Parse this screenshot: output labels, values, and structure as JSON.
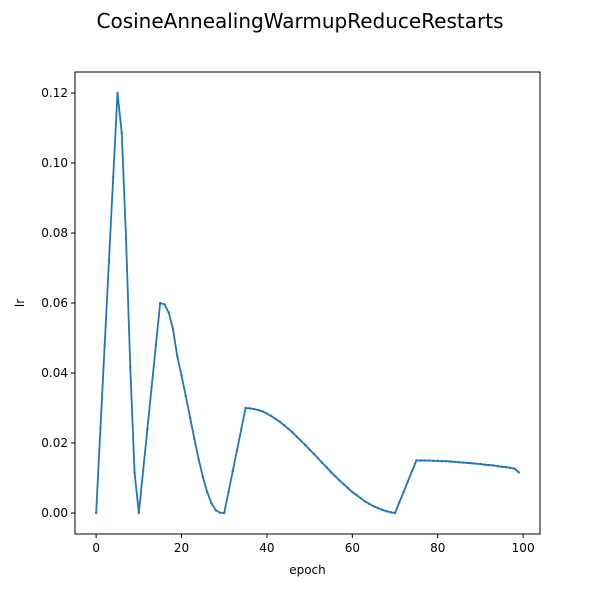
{
  "chart_data": {
    "type": "line",
    "title": "CosineAnnealingWarmupReduceRestarts",
    "xlabel": "epoch",
    "ylabel": "lr",
    "xlim": [
      -4.95,
      103.95
    ],
    "ylim": [
      -0.006,
      0.126
    ],
    "xticks": [
      0,
      20,
      40,
      60,
      80,
      100
    ],
    "yticks": [
      0.0,
      0.02,
      0.04,
      0.06,
      0.08,
      0.1,
      0.12
    ],
    "xtick_labels": [
      "0",
      "20",
      "40",
      "60",
      "80",
      "100"
    ],
    "ytick_labels": [
      "0.00",
      "0.02",
      "0.04",
      "0.06",
      "0.08",
      "0.10",
      "0.12"
    ],
    "grid": false,
    "color": "#1f77b4",
    "series": [
      {
        "name": "lr",
        "x": [
          0,
          1,
          2,
          3,
          4,
          5,
          6,
          7,
          8,
          9,
          10,
          11,
          12,
          13,
          14,
          15,
          16,
          17,
          18,
          19,
          20,
          21,
          22,
          23,
          24,
          25,
          26,
          27,
          28,
          29,
          30,
          31,
          32,
          33,
          34,
          35,
          36,
          37,
          38,
          39,
          40,
          41,
          42,
          43,
          44,
          45,
          46,
          47,
          48,
          49,
          50,
          51,
          52,
          53,
          54,
          55,
          56,
          57,
          58,
          59,
          60,
          61,
          62,
          63,
          64,
          65,
          66,
          67,
          68,
          69,
          70,
          71,
          72,
          73,
          74,
          75,
          76,
          77,
          78,
          79,
          80,
          81,
          82,
          83,
          84,
          85,
          86,
          87,
          88,
          89,
          90,
          91,
          92,
          93,
          94,
          95,
          96,
          97,
          98,
          99
        ],
        "values": [
          0.0,
          0.024,
          0.048,
          0.072,
          0.096,
          0.12,
          0.1085,
          0.0785,
          0.0415,
          0.0115,
          0.0,
          0.012,
          0.024,
          0.036,
          0.048,
          0.06,
          0.0596,
          0.0573,
          0.0525,
          0.0448,
          0.0393,
          0.0334,
          0.0273,
          0.0212,
          0.0154,
          0.0103,
          0.006,
          0.0028,
          0.0008,
          0.0001,
          0.0,
          0.006,
          0.012,
          0.018,
          0.024,
          0.03,
          0.0299,
          0.0297,
          0.0294,
          0.029,
          0.0284,
          0.0277,
          0.0269,
          0.0261,
          0.0251,
          0.0241,
          0.023,
          0.0218,
          0.0206,
          0.0194,
          0.0181,
          0.0169,
          0.0156,
          0.0143,
          0.013,
          0.0117,
          0.0105,
          0.0093,
          0.0082,
          0.0071,
          0.006,
          0.0051,
          0.0042,
          0.0033,
          0.0026,
          0.0019,
          0.0014,
          0.0009,
          0.0005,
          0.0002,
          0.0,
          0.003,
          0.006,
          0.009,
          0.012,
          0.015,
          0.015,
          0.015,
          0.015,
          0.0149,
          0.0149,
          0.0148,
          0.0148,
          0.0147,
          0.0146,
          0.0145,
          0.0144,
          0.0143,
          0.0142,
          0.0141,
          0.014,
          0.0138,
          0.0137,
          0.0136,
          0.0134,
          0.0132,
          0.0131,
          0.0129,
          0.0127,
          0.0116
        ]
      }
    ]
  }
}
